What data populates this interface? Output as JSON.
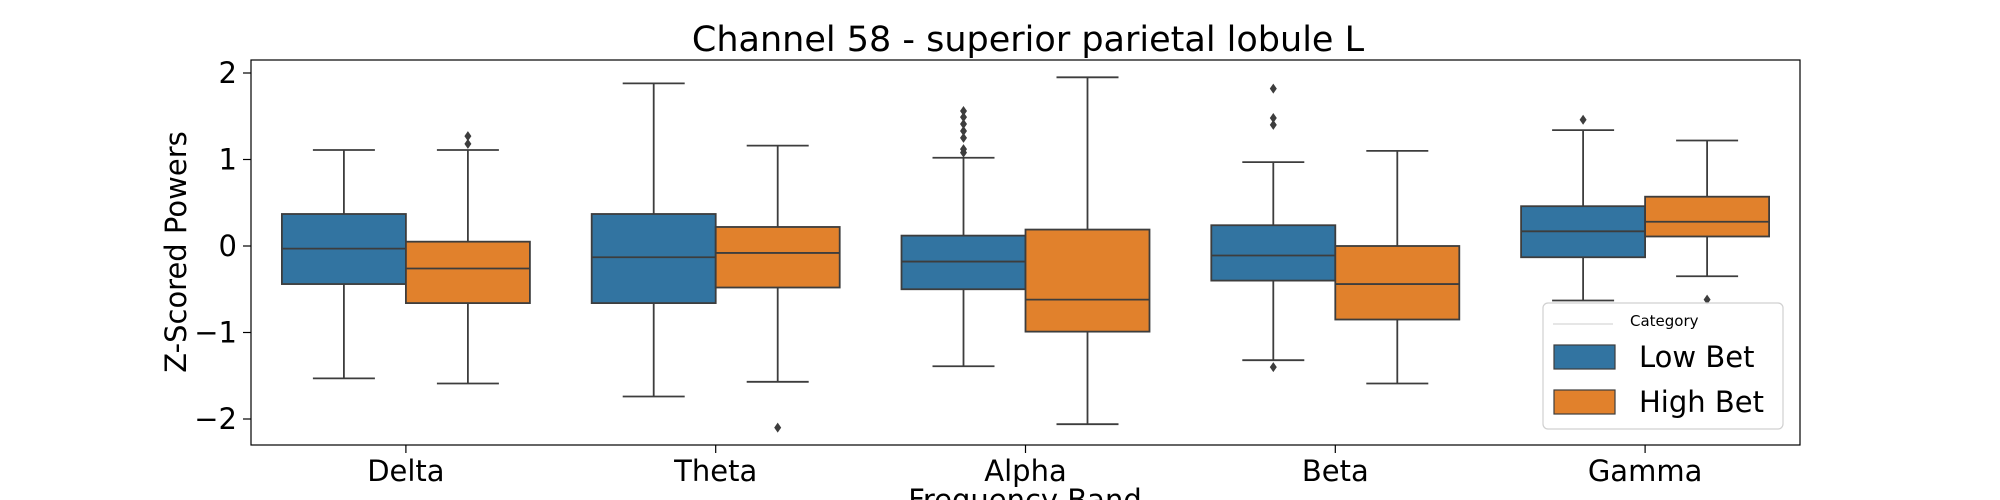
{
  "chart_data": {
    "type": "box",
    "title": "Channel 58 - superior parietal lobule L",
    "xlabel": "Frequency Band",
    "ylabel": "Z-Scored Powers",
    "categories": [
      "Delta",
      "Theta",
      "Alpha",
      "Beta",
      "Gamma"
    ],
    "ylim": [
      -2.3,
      2.2
    ],
    "yticks": [
      2,
      1,
      0,
      -1,
      -2
    ],
    "ytick_labels": [
      "2",
      "1",
      "0",
      "−1",
      "−2"
    ],
    "grid": false,
    "legend": {
      "title": "Category",
      "position": "lower-right"
    },
    "series": [
      {
        "name": "Low Bet",
        "color": "#3274a1",
        "boxes": [
          {
            "whisker_low": -1.53,
            "q1": -0.44,
            "median": -0.03,
            "q3": 0.37,
            "whisker_high": 1.11,
            "outliers": []
          },
          {
            "whisker_low": -1.74,
            "q1": -0.66,
            "median": -0.13,
            "q3": 0.37,
            "whisker_high": 1.88,
            "outliers": []
          },
          {
            "whisker_low": -1.39,
            "q1": -0.5,
            "median": -0.18,
            "q3": 0.12,
            "whisker_high": 1.02,
            "outliers": [
              1.08,
              1.12,
              1.25,
              1.33,
              1.41,
              1.49,
              1.56
            ]
          },
          {
            "whisker_low": -1.32,
            "q1": -0.4,
            "median": -0.11,
            "q3": 0.24,
            "whisker_high": 0.97,
            "outliers": [
              -1.4,
              1.4,
              1.48,
              1.82
            ]
          },
          {
            "whisker_low": -0.63,
            "q1": -0.13,
            "median": 0.17,
            "q3": 0.46,
            "whisker_high": 1.34,
            "outliers": [
              1.46
            ]
          }
        ]
      },
      {
        "name": "High Bet",
        "color": "#e1812c",
        "boxes": [
          {
            "whisker_low": -1.59,
            "q1": -0.66,
            "median": -0.26,
            "q3": 0.05,
            "whisker_high": 1.11,
            "outliers": [
              1.18,
              1.27
            ]
          },
          {
            "whisker_low": -1.57,
            "q1": -0.48,
            "median": -0.08,
            "q3": 0.22,
            "whisker_high": 1.16,
            "outliers": [
              -2.1
            ]
          },
          {
            "whisker_low": -2.06,
            "q1": -0.99,
            "median": -0.62,
            "q3": 0.19,
            "whisker_high": 1.95,
            "outliers": []
          },
          {
            "whisker_low": -1.59,
            "q1": -0.85,
            "median": -0.44,
            "q3": 0.0,
            "whisker_high": 1.1,
            "outliers": []
          },
          {
            "whisker_low": -0.35,
            "q1": 0.11,
            "median": 0.28,
            "q3": 0.57,
            "whisker_high": 1.22,
            "outliers": [
              -0.62
            ]
          }
        ]
      }
    ]
  }
}
